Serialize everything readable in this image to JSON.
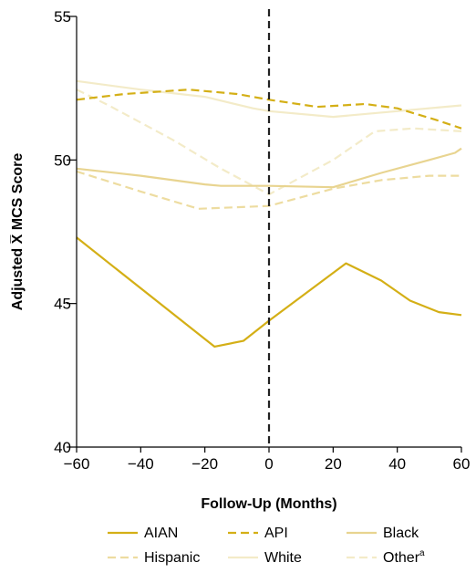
{
  "chart_data": {
    "type": "line",
    "xlabel": "Follow-Up (Months)",
    "ylabel": "Adjusted X̅ MCS Score",
    "xlim": [
      -60,
      60
    ],
    "ylim": [
      40,
      55
    ],
    "xticks": [
      -60,
      -40,
      -20,
      0,
      20,
      40,
      60
    ],
    "yticks": [
      40,
      45,
      50,
      55
    ],
    "xtick_labels": [
      "−60",
      "−40",
      "−20",
      "0",
      "20",
      "40",
      "60"
    ],
    "ytick_labels": [
      "40",
      "45",
      "50",
      "55"
    ],
    "reference_line": {
      "x": 0,
      "style": "dashed",
      "color": "#222222"
    },
    "legend_position": "bottom",
    "series": [
      {
        "name": "AIAN",
        "color": "#d4af16",
        "dash": "solid",
        "x": [
          -60,
          -17,
          -8,
          0,
          24,
          35,
          44,
          53,
          60
        ],
        "y": [
          47.3,
          43.5,
          43.7,
          44.4,
          46.4,
          45.8,
          45.1,
          44.7,
          44.6
        ]
      },
      {
        "name": "API",
        "color": "#d4af16",
        "dash": "dashed",
        "x": [
          -60,
          -45,
          -25,
          -10,
          0,
          15,
          30,
          40,
          52,
          60
        ],
        "y": [
          52.1,
          52.3,
          52.45,
          52.3,
          52.1,
          51.85,
          51.95,
          51.8,
          51.4,
          51.1
        ]
      },
      {
        "name": "Black",
        "color": "#e8d490",
        "dash": "solid",
        "x": [
          -60,
          -40,
          -20,
          -15,
          0,
          20,
          35,
          50,
          58,
          60
        ],
        "y": [
          49.7,
          49.45,
          49.15,
          49.1,
          49.1,
          49.05,
          49.55,
          50.0,
          50.25,
          50.4
        ]
      },
      {
        "name": "Hispanic",
        "color": "#eddca0",
        "dash": "dashed",
        "x": [
          -60,
          -40,
          -22,
          0,
          20,
          35,
          50,
          60
        ],
        "y": [
          49.6,
          48.9,
          48.3,
          48.4,
          49.0,
          49.3,
          49.45,
          49.45
        ]
      },
      {
        "name": "White",
        "color": "#f3ebc8",
        "dash": "solid",
        "x": [
          -60,
          -40,
          -20,
          -5,
          0,
          20,
          40,
          60
        ],
        "y": [
          52.75,
          52.45,
          52.2,
          51.8,
          51.7,
          51.5,
          51.7,
          51.9
        ]
      },
      {
        "name": "Other",
        "superscript": "a",
        "color": "#f3ebc8",
        "dash": "dashed",
        "x": [
          -60,
          -50,
          -30,
          -15,
          0,
          20,
          33,
          45,
          60
        ],
        "y": [
          52.45,
          51.9,
          50.7,
          49.7,
          48.8,
          50.0,
          51.0,
          51.1,
          51.0
        ]
      }
    ]
  }
}
